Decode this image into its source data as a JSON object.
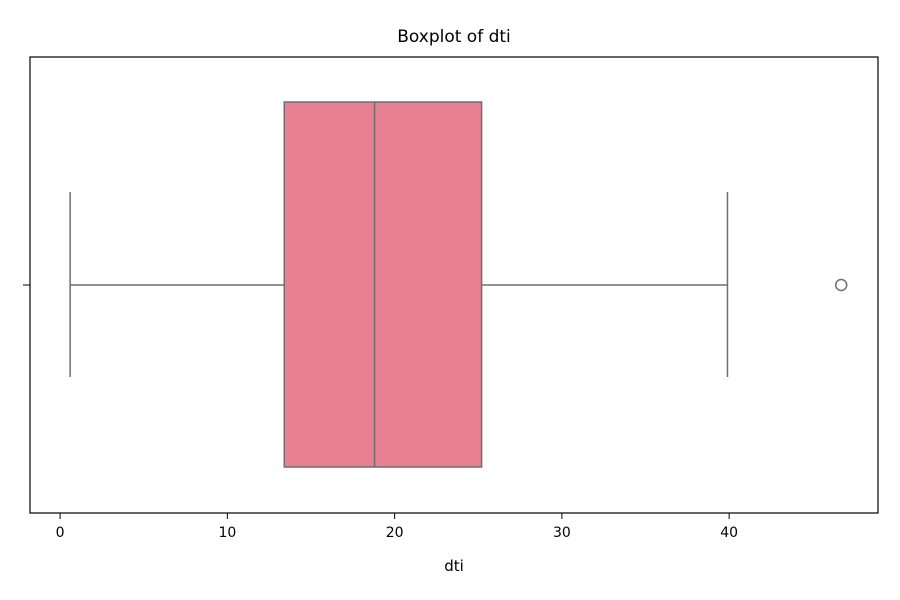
{
  "chart_data": {
    "type": "box",
    "title": "Boxplot of dti",
    "xlabel": "dti",
    "ylabel": "",
    "orientation": "horizontal",
    "xlim": [
      -1.8,
      48.9
    ],
    "xticks": [
      0,
      10,
      20,
      30,
      40
    ],
    "xtick_labels": [
      "0",
      "10",
      "20",
      "30",
      "40"
    ],
    "grid": false,
    "series": [
      {
        "whisker_low": 0.6,
        "q1": 13.4,
        "median": 18.8,
        "q3": 25.2,
        "whisker_high": 39.9,
        "outliers": [
          46.7
        ],
        "color": "#e78092"
      }
    ]
  }
}
